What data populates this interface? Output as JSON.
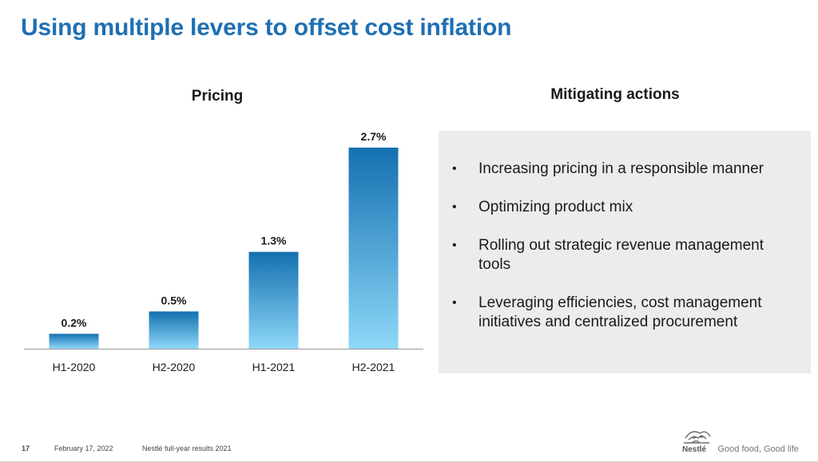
{
  "slide": {
    "title": "Using multiple levers to offset cost inflation",
    "page_number": "17",
    "date": "February 17, 2022",
    "event": "Nestlé full-year results 2021",
    "brand_name": "Nestlé",
    "tagline": "Good food, Good life"
  },
  "chart_data": {
    "type": "bar",
    "title": "Pricing",
    "categories": [
      "H1-2020",
      "H2-2020",
      "H1-2021",
      "H2-2021"
    ],
    "values": [
      0.2,
      0.5,
      1.3,
      2.7
    ],
    "data_labels": [
      "0.2%",
      "0.5%",
      "1.3%",
      "2.7%"
    ],
    "unit": "%",
    "xlabel": "",
    "ylabel": "",
    "ylim": [
      0,
      2.7
    ],
    "grid": false,
    "legend": "none",
    "colors": {
      "bar_top": "#1470b0",
      "bar_bottom": "#8ed8f8",
      "axis": "#9a9a9a"
    }
  },
  "actions": {
    "title": "Mitigating actions",
    "bullet": "•",
    "items": [
      "Increasing pricing in a responsible manner",
      "Optimizing product mix",
      "Rolling out strategic revenue management tools",
      "Leveraging efficiencies, cost management initiatives and centralized procurement"
    ]
  },
  "colors": {
    "title": "#1f6fb2",
    "panel": "#ececec"
  }
}
